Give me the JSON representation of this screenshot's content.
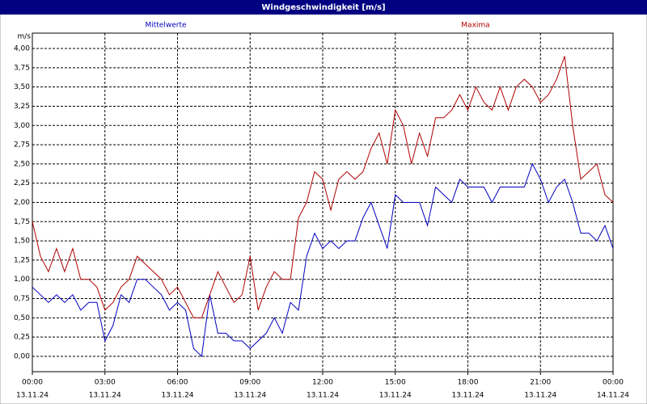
{
  "chart_data": {
    "type": "line",
    "title": "Windgeschwindigkeit [m/s]",
    "y_unit": "m/s",
    "x": [
      0,
      20,
      40,
      60,
      80,
      100,
      120,
      140,
      160,
      180,
      200,
      220,
      240,
      260,
      280,
      300,
      320,
      340,
      360,
      380,
      400,
      420,
      440,
      460,
      480,
      500,
      520,
      540,
      560,
      580,
      600,
      620,
      640,
      660,
      680,
      700,
      720,
      740,
      760,
      780,
      800,
      820,
      840,
      860,
      880,
      900,
      920,
      940,
      960,
      980,
      1000,
      1020,
      1040,
      1060,
      1080,
      1100,
      1120,
      1140,
      1160,
      1180,
      1200,
      1220,
      1240,
      1260,
      1280,
      1300,
      1320,
      1340,
      1360,
      1380,
      1400,
      1420,
      1440
    ],
    "series": [
      {
        "name": "Mittelwerte",
        "color": "#0000c0",
        "values": [
          0.9,
          0.8,
          0.7,
          0.8,
          0.7,
          0.8,
          0.6,
          0.7,
          0.7,
          0.2,
          0.4,
          0.8,
          0.7,
          1.0,
          1.0,
          0.9,
          0.8,
          0.6,
          0.7,
          0.6,
          0.1,
          0.0,
          0.8,
          0.3,
          0.3,
          0.2,
          0.2,
          0.1,
          0.2,
          0.3,
          0.5,
          0.3,
          0.7,
          0.6,
          1.3,
          1.6,
          1.4,
          1.5,
          1.4,
          1.5,
          1.5,
          1.8,
          2.0,
          1.7,
          1.4,
          2.1,
          2.0,
          2.0,
          2.0,
          1.7,
          2.2,
          2.1,
          2.0,
          2.3,
          2.2,
          2.2,
          2.2,
          2.0,
          2.2,
          2.2,
          2.2,
          2.2,
          2.5,
          2.3,
          2.0,
          2.2,
          2.3,
          2.0,
          1.6,
          1.6,
          1.5,
          1.7,
          1.4
        ]
      },
      {
        "name": "Maxima",
        "color": "#b00000",
        "values": [
          1.75,
          1.3,
          1.1,
          1.4,
          1.1,
          1.4,
          1.0,
          1.0,
          0.9,
          0.6,
          0.7,
          0.9,
          1.0,
          1.3,
          1.2,
          1.1,
          1.0,
          0.8,
          0.9,
          0.7,
          0.5,
          0.5,
          0.8,
          1.1,
          0.9,
          0.7,
          0.8,
          1.3,
          0.6,
          0.9,
          1.1,
          1.0,
          1.0,
          1.8,
          2.0,
          2.4,
          2.3,
          1.9,
          2.3,
          2.4,
          2.3,
          2.4,
          2.7,
          2.9,
          2.5,
          3.2,
          3.0,
          2.5,
          2.9,
          2.6,
          3.1,
          3.1,
          3.2,
          3.4,
          3.2,
          3.5,
          3.3,
          3.2,
          3.5,
          3.2,
          3.5,
          3.6,
          3.5,
          3.3,
          3.4,
          3.6,
          3.9,
          3.0,
          2.3,
          2.4,
          2.5,
          2.1,
          2.0
        ]
      }
    ],
    "xlim": [
      0,
      1440
    ],
    "xticks": [
      {
        "value": 0,
        "label": "00:00"
      },
      {
        "value": 180,
        "label": "03:00"
      },
      {
        "value": 360,
        "label": "06:00"
      },
      {
        "value": 540,
        "label": "09:00"
      },
      {
        "value": 720,
        "label": "12:00"
      },
      {
        "value": 900,
        "label": "15:00"
      },
      {
        "value": 1080,
        "label": "18:00"
      },
      {
        "value": 1260,
        "label": "21:00"
      },
      {
        "value": 1440,
        "label": "00:00"
      }
    ],
    "xtick_dates": [
      "13.11.24",
      "13.11.24",
      "13.11.24",
      "13.11.24",
      "13.11.24",
      "13.11.24",
      "13.11.24",
      "13.11.24",
      "14.11.24"
    ],
    "ylim": [
      -0.2,
      4.2
    ],
    "yticks": [
      {
        "value": 0,
        "label": "0,00"
      },
      {
        "value": 0.25,
        "label": "0,25"
      },
      {
        "value": 0.5,
        "label": "0,50"
      },
      {
        "value": 0.75,
        "label": "0,75"
      },
      {
        "value": 1,
        "label": "1,00"
      },
      {
        "value": 1.25,
        "label": "1,25"
      },
      {
        "value": 1.5,
        "label": "1,50"
      },
      {
        "value": 1.75,
        "label": "1,75"
      },
      {
        "value": 2,
        "label": "2,00"
      },
      {
        "value": 2.25,
        "label": "2,25"
      },
      {
        "value": 2.5,
        "label": "2,50"
      },
      {
        "value": 2.75,
        "label": "2,75"
      },
      {
        "value": 3,
        "label": "3,00"
      },
      {
        "value": 3.25,
        "label": "3,25"
      },
      {
        "value": 3.5,
        "label": "3,50"
      },
      {
        "value": 3.75,
        "label": "3,75"
      },
      {
        "value": 4,
        "label": "4,00"
      }
    ],
    "grid": true
  }
}
